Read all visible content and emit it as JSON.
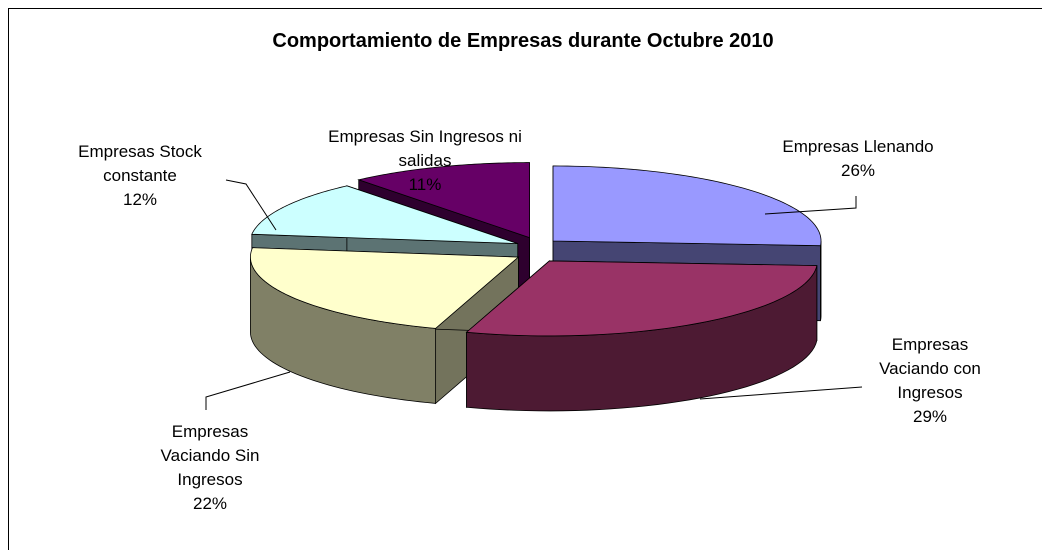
{
  "chart_data": {
    "type": "pie3d",
    "title": "Comportamiento de Empresas durante Octubre  2010",
    "categories": [
      "Empresas Llenando",
      "Empresas Vaciando con Ingresos",
      "Empresas Vaciando Sin Ingresos",
      "Empresas Stock constante",
      "Empresas Sin Ingresos ni salidas"
    ],
    "values": [
      26,
      29,
      22,
      12,
      11
    ],
    "value_labels": [
      "26%",
      "29%",
      "22%",
      "12%",
      "11%"
    ],
    "colors": [
      "#9999ff",
      "#993366",
      "#ffffcc",
      "#ccffff",
      "#660066"
    ]
  }
}
